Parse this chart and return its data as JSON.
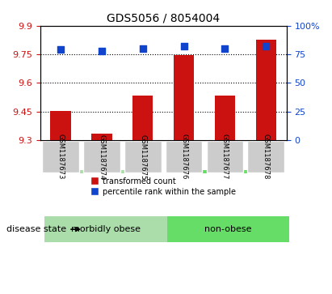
{
  "title": "GDS5056 / 8054004",
  "samples": [
    "GSM1187673",
    "GSM1187674",
    "GSM1187675",
    "GSM1187676",
    "GSM1187677",
    "GSM1187678"
  ],
  "bar_values": [
    9.455,
    9.335,
    9.535,
    9.745,
    9.535,
    9.825
  ],
  "dot_values": [
    79,
    78,
    80,
    82,
    80,
    82
  ],
  "bar_color": "#cc1111",
  "dot_color": "#1144cc",
  "ylim_left": [
    9.3,
    9.9
  ],
  "ylim_right": [
    0,
    100
  ],
  "yticks_left": [
    9.3,
    9.45,
    9.6,
    9.75,
    9.9
  ],
  "yticks_right": [
    0,
    25,
    50,
    75,
    100
  ],
  "ytick_labels_left": [
    "9.3",
    "9.45",
    "9.6",
    "9.75",
    "9.9"
  ],
  "ytick_labels_right": [
    "0",
    "25",
    "50",
    "75",
    "100%"
  ],
  "hlines": [
    9.45,
    9.6,
    9.75
  ],
  "groups": [
    {
      "label": "morbidly obese",
      "indices": [
        0,
        1,
        2
      ],
      "color": "#aaddaa"
    },
    {
      "label": "non-obese",
      "indices": [
        3,
        4,
        5
      ],
      "color": "#66dd66"
    }
  ],
  "disease_state_label": "disease state",
  "legend_bar_label": "transformed count",
  "legend_dot_label": "percentile rank within the sample",
  "background_color": "#ffffff",
  "tick_label_color_left": "#cc1111",
  "tick_label_color_right": "#1144cc"
}
